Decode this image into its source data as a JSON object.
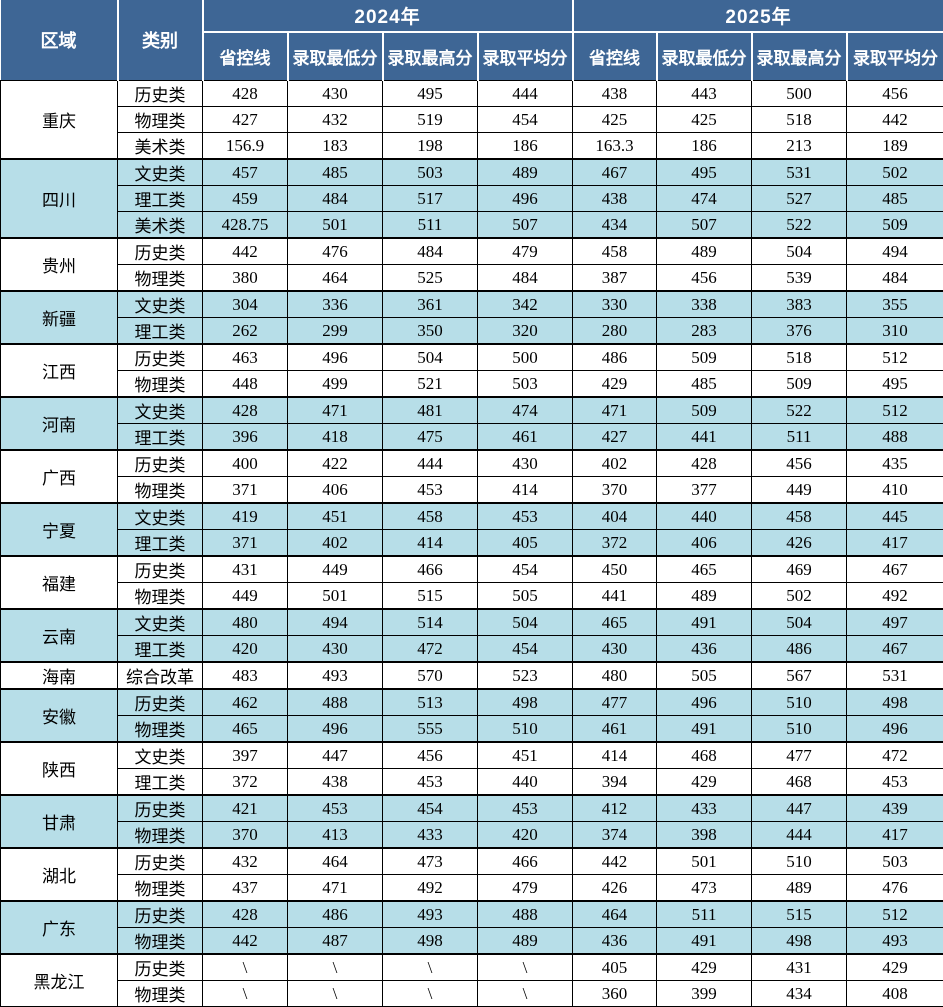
{
  "table": {
    "header": {
      "region_label": "区域",
      "category_label": "类别",
      "year_2024": "2024年",
      "year_2025": "2025年",
      "metric_labels": [
        "省控线",
        "录取最低分",
        "录取最高分",
        "录取平均分"
      ]
    },
    "colors": {
      "header_bg": "#3E6695",
      "header_text": "#FFFFFF",
      "row_alt_bg": "#B7DEE8",
      "row_bg": "#FFFFFF",
      "border": "#000000"
    },
    "groups": [
      {
        "region": "重庆",
        "rows": [
          {
            "category": "历史类",
            "values": [
              "428",
              "430",
              "495",
              "444",
              "438",
              "443",
              "500",
              "456"
            ]
          },
          {
            "category": "物理类",
            "values": [
              "427",
              "432",
              "519",
              "454",
              "425",
              "425",
              "518",
              "442"
            ]
          },
          {
            "category": "美术类",
            "values": [
              "156.9",
              "183",
              "198",
              "186",
              "163.3",
              "186",
              "213",
              "189"
            ]
          }
        ]
      },
      {
        "region": "四川",
        "rows": [
          {
            "category": "文史类",
            "values": [
              "457",
              "485",
              "503",
              "489",
              "467",
              "495",
              "531",
              "502"
            ]
          },
          {
            "category": "理工类",
            "values": [
              "459",
              "484",
              "517",
              "496",
              "438",
              "474",
              "527",
              "485"
            ]
          },
          {
            "category": "美术类",
            "values": [
              "428.75",
              "501",
              "511",
              "507",
              "434",
              "507",
              "522",
              "509"
            ]
          }
        ]
      },
      {
        "region": "贵州",
        "rows": [
          {
            "category": "历史类",
            "values": [
              "442",
              "476",
              "484",
              "479",
              "458",
              "489",
              "504",
              "494"
            ]
          },
          {
            "category": "物理类",
            "values": [
              "380",
              "464",
              "525",
              "484",
              "387",
              "456",
              "539",
              "484"
            ]
          }
        ]
      },
      {
        "region": "新疆",
        "rows": [
          {
            "category": "文史类",
            "values": [
              "304",
              "336",
              "361",
              "342",
              "330",
              "338",
              "383",
              "355"
            ]
          },
          {
            "category": "理工类",
            "values": [
              "262",
              "299",
              "350",
              "320",
              "280",
              "283",
              "376",
              "310"
            ]
          }
        ]
      },
      {
        "region": "江西",
        "rows": [
          {
            "category": "历史类",
            "values": [
              "463",
              "496",
              "504",
              "500",
              "486",
              "509",
              "518",
              "512"
            ]
          },
          {
            "category": "物理类",
            "values": [
              "448",
              "499",
              "521",
              "503",
              "429",
              "485",
              "509",
              "495"
            ]
          }
        ]
      },
      {
        "region": "河南",
        "rows": [
          {
            "category": "文史类",
            "values": [
              "428",
              "471",
              "481",
              "474",
              "471",
              "509",
              "522",
              "512"
            ]
          },
          {
            "category": "理工类",
            "values": [
              "396",
              "418",
              "475",
              "461",
              "427",
              "441",
              "511",
              "488"
            ]
          }
        ]
      },
      {
        "region": "广西",
        "rows": [
          {
            "category": "历史类",
            "values": [
              "400",
              "422",
              "444",
              "430",
              "402",
              "428",
              "456",
              "435"
            ]
          },
          {
            "category": "物理类",
            "values": [
              "371",
              "406",
              "453",
              "414",
              "370",
              "377",
              "449",
              "410"
            ]
          }
        ]
      },
      {
        "region": "宁夏",
        "rows": [
          {
            "category": "文史类",
            "values": [
              "419",
              "451",
              "458",
              "453",
              "404",
              "440",
              "458",
              "445"
            ]
          },
          {
            "category": "理工类",
            "values": [
              "371",
              "402",
              "414",
              "405",
              "372",
              "406",
              "426",
              "417"
            ]
          }
        ]
      },
      {
        "region": "福建",
        "rows": [
          {
            "category": "历史类",
            "values": [
              "431",
              "449",
              "466",
              "454",
              "450",
              "465",
              "469",
              "467"
            ]
          },
          {
            "category": "物理类",
            "values": [
              "449",
              "501",
              "515",
              "505",
              "441",
              "489",
              "502",
              "492"
            ]
          }
        ]
      },
      {
        "region": "云南",
        "rows": [
          {
            "category": "文史类",
            "values": [
              "480",
              "494",
              "514",
              "504",
              "465",
              "491",
              "504",
              "497"
            ]
          },
          {
            "category": "理工类",
            "values": [
              "420",
              "430",
              "472",
              "454",
              "430",
              "436",
              "486",
              "467"
            ]
          }
        ]
      },
      {
        "region": "海南",
        "rows": [
          {
            "category": "综合改革",
            "values": [
              "483",
              "493",
              "570",
              "523",
              "480",
              "505",
              "567",
              "531"
            ]
          }
        ]
      },
      {
        "region": "安徽",
        "rows": [
          {
            "category": "历史类",
            "values": [
              "462",
              "488",
              "513",
              "498",
              "477",
              "496",
              "510",
              "498"
            ]
          },
          {
            "category": "物理类",
            "values": [
              "465",
              "496",
              "555",
              "510",
              "461",
              "491",
              "510",
              "496"
            ]
          }
        ]
      },
      {
        "region": "陕西",
        "rows": [
          {
            "category": "文史类",
            "values": [
              "397",
              "447",
              "456",
              "451",
              "414",
              "468",
              "477",
              "472"
            ]
          },
          {
            "category": "理工类",
            "values": [
              "372",
              "438",
              "453",
              "440",
              "394",
              "429",
              "468",
              "453"
            ]
          }
        ]
      },
      {
        "region": "甘肃",
        "rows": [
          {
            "category": "历史类",
            "values": [
              "421",
              "453",
              "454",
              "453",
              "412",
              "433",
              "447",
              "439"
            ]
          },
          {
            "category": "物理类",
            "values": [
              "370",
              "413",
              "433",
              "420",
              "374",
              "398",
              "444",
              "417"
            ]
          }
        ]
      },
      {
        "region": "湖北",
        "rows": [
          {
            "category": "历史类",
            "values": [
              "432",
              "464",
              "473",
              "466",
              "442",
              "501",
              "510",
              "503"
            ]
          },
          {
            "category": "物理类",
            "values": [
              "437",
              "471",
              "492",
              "479",
              "426",
              "473",
              "489",
              "476"
            ]
          }
        ]
      },
      {
        "region": "广东",
        "rows": [
          {
            "category": "历史类",
            "values": [
              "428",
              "486",
              "493",
              "488",
              "464",
              "511",
              "515",
              "512"
            ]
          },
          {
            "category": "物理类",
            "values": [
              "442",
              "487",
              "498",
              "489",
              "436",
              "491",
              "498",
              "493"
            ]
          }
        ]
      },
      {
        "region": "黑龙江",
        "rows": [
          {
            "category": "历史类",
            "values": [
              "\\",
              "\\",
              "\\",
              "\\",
              "405",
              "429",
              "431",
              "429"
            ]
          },
          {
            "category": "物理类",
            "values": [
              "\\",
              "\\",
              "\\",
              "\\",
              "360",
              "399",
              "434",
              "408"
            ]
          }
        ]
      }
    ]
  }
}
